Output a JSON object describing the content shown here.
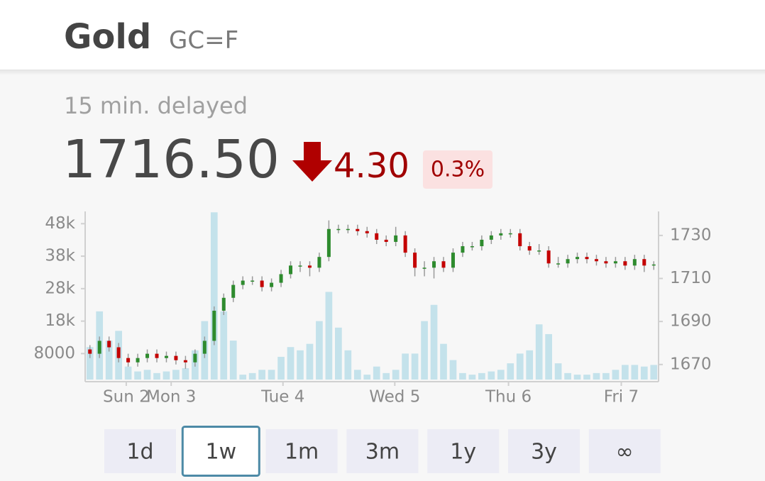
{
  "header": {
    "title": "Gold",
    "symbol": "GC=F"
  },
  "quote": {
    "delay": "15 min. delayed",
    "price": "1716.50",
    "change": "4.30",
    "change_percent": "0.3%"
  },
  "chart_data": {
    "type": "candlestick",
    "x": [
      0,
      1,
      2,
      3,
      4,
      5,
      6,
      7,
      8,
      9,
      10,
      11,
      12,
      13,
      14,
      15,
      16,
      17,
      18,
      19,
      20,
      21,
      22,
      23,
      24,
      25,
      26,
      27,
      28,
      29,
      30,
      31,
      32,
      33,
      34,
      35,
      36,
      37,
      38,
      39,
      40,
      41,
      42,
      43,
      44,
      45,
      46,
      47,
      48,
      49,
      50,
      51,
      52,
      53,
      54,
      55,
      56,
      57,
      58,
      59
    ],
    "xlim": [
      -0.5,
      59.5
    ],
    "xticks": [
      {
        "value": 3.8,
        "label": "Sun 2"
      },
      {
        "value": 8.5,
        "label": "Mon 3"
      },
      {
        "value": 20.2,
        "label": "Tue 4"
      },
      {
        "value": 31.9,
        "label": "Wed 5"
      },
      {
        "value": 43.8,
        "label": "Thu 6"
      },
      {
        "value": 55.6,
        "label": "Fri 7"
      }
    ],
    "ylim": [
      0,
      52000
    ],
    "yticks": [
      8000,
      {
        "value": 18000,
        "label": "18k"
      },
      {
        "value": 28000,
        "label": "28k"
      },
      {
        "value": 38000,
        "label": "38k"
      },
      {
        "value": 48000,
        "label": "48k"
      }
    ],
    "y2lim": [
      1663,
      1741.5
    ],
    "y2ticks": [
      1670,
      1690,
      1710,
      1730
    ],
    "up_color": "#2e8b2e",
    "down_color": "#c40000",
    "price": {
      "axis": "y2",
      "open": [
        1677,
        1675,
        1681,
        1678,
        1673,
        1671,
        1673,
        1675,
        1673,
        1674,
        1672,
        1671,
        1675,
        1681,
        1695,
        1701,
        1707,
        1709,
        1709,
        1706,
        1708,
        1712,
        1716,
        1716,
        1715,
        1720,
        1733,
        1733,
        1733,
        1732,
        1731,
        1728,
        1727,
        1730,
        1722,
        1715,
        1715,
        1718,
        1715,
        1722,
        1725,
        1725,
        1728,
        1730,
        1731,
        1731,
        1725,
        1723,
        1723,
        1717,
        1717,
        1719,
        1720,
        1719,
        1718,
        1717,
        1718,
        1716,
        1719,
        1716
      ],
      "high": [
        1679,
        1683,
        1683,
        1680,
        1675,
        1675,
        1677,
        1677,
        1676,
        1676,
        1674,
        1677,
        1683,
        1697,
        1703,
        1709,
        1711,
        1711,
        1711,
        1710,
        1714,
        1718,
        1718,
        1718,
        1722,
        1737,
        1735,
        1735,
        1735,
        1734,
        1733,
        1730,
        1734,
        1732,
        1724,
        1718,
        1720,
        1720,
        1724,
        1727,
        1727,
        1730,
        1732,
        1733,
        1733,
        1733,
        1727,
        1726,
        1725,
        1720,
        1721,
        1722,
        1722,
        1721,
        1720,
        1720,
        1720,
        1721,
        1721,
        1718
      ],
      "low": [
        1673,
        1673,
        1676,
        1671,
        1669,
        1669,
        1671,
        1671,
        1671,
        1670,
        1668,
        1669,
        1673,
        1679,
        1693,
        1699,
        1705,
        1707,
        1704,
        1704,
        1706,
        1710,
        1713,
        1711,
        1713,
        1718,
        1731,
        1731,
        1730,
        1729,
        1726,
        1725,
        1725,
        1720,
        1711,
        1711,
        1710,
        1713,
        1713,
        1720,
        1723,
        1723,
        1726,
        1728,
        1729,
        1723,
        1721,
        1721,
        1715,
        1715,
        1715,
        1717,
        1717,
        1716,
        1715,
        1715,
        1714,
        1714,
        1713,
        1714
      ],
      "close": [
        1675,
        1681,
        1678,
        1673,
        1671,
        1673,
        1675,
        1673,
        1674,
        1672,
        1671,
        1675,
        1681,
        1695,
        1701,
        1707,
        1709,
        1709,
        1706,
        1708,
        1712,
        1716,
        1716,
        1715,
        1720,
        1733,
        1733,
        1733,
        1732,
        1731,
        1728,
        1727,
        1730,
        1722,
        1715,
        1715,
        1718,
        1715,
        1722,
        1725,
        1725,
        1728,
        1730,
        1731,
        1731,
        1725,
        1723,
        1723,
        1717,
        1717,
        1719,
        1720,
        1719,
        1718,
        1717,
        1718,
        1716,
        1719,
        1716,
        1716.5
      ]
    },
    "volume": {
      "axis": "y",
      "color": "#c4e2eb",
      "values": [
        10000,
        21000,
        12000,
        15000,
        4000,
        2500,
        3000,
        2000,
        2500,
        3000,
        3500,
        9000,
        18000,
        51500,
        21000,
        12000,
        1500,
        2000,
        3000,
        3000,
        7000,
        10000,
        9000,
        11000,
        18000,
        27000,
        16000,
        9000,
        3000,
        1500,
        4000,
        2000,
        3000,
        8000,
        8000,
        18000,
        23000,
        11000,
        6000,
        2000,
        1500,
        2000,
        2500,
        3000,
        5000,
        8000,
        9000,
        17000,
        14000,
        5000,
        2000,
        1500,
        1500,
        2000,
        2000,
        3000,
        4500,
        4500,
        4000,
        4500
      ]
    }
  },
  "range_buttons": [
    "1d",
    "1w",
    "1m",
    "3m",
    "1y",
    "3y",
    "∞"
  ],
  "selected_range": "1w"
}
